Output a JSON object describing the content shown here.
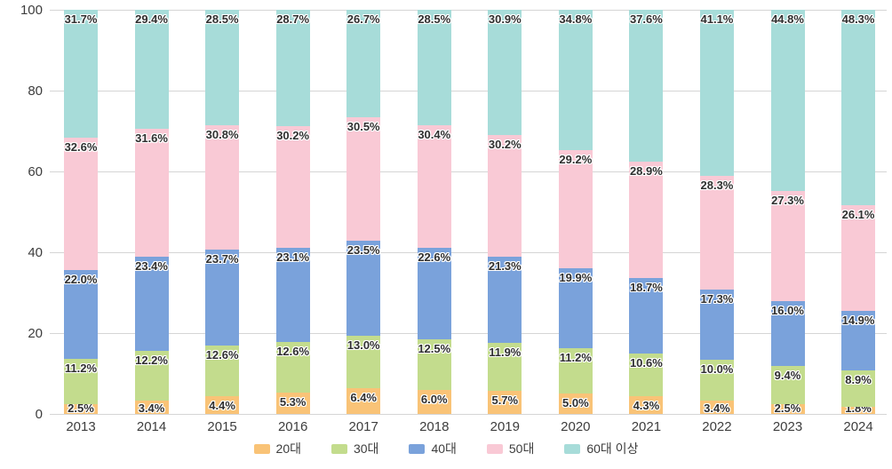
{
  "chart_data": {
    "type": "bar",
    "stacked": true,
    "title": "",
    "categories": [
      "2013",
      "2014",
      "2015",
      "2016",
      "2017",
      "2018",
      "2019",
      "2020",
      "2021",
      "2022",
      "2023",
      "2024"
    ],
    "series": [
      {
        "name": "20대",
        "color": "#f9c377",
        "values": [
          2.5,
          3.4,
          4.4,
          5.3,
          6.4,
          6.0,
          5.7,
          5.0,
          4.3,
          3.4,
          2.5,
          1.8
        ]
      },
      {
        "name": "30대",
        "color": "#c3dc8d",
        "values": [
          11.2,
          12.2,
          12.6,
          12.6,
          13.0,
          12.5,
          11.9,
          11.2,
          10.6,
          10.0,
          9.4,
          8.9
        ]
      },
      {
        "name": "40대",
        "color": "#7aa2db",
        "values": [
          22.0,
          23.4,
          23.7,
          23.1,
          23.5,
          22.6,
          21.3,
          19.9,
          18.7,
          17.3,
          16.0,
          14.9
        ]
      },
      {
        "name": "50대",
        "color": "#f9c9d5",
        "values": [
          32.6,
          31.6,
          30.8,
          30.2,
          30.5,
          30.4,
          30.2,
          29.2,
          28.9,
          28.3,
          27.3,
          26.1
        ]
      },
      {
        "name": "60대 이상",
        "color": "#a7dcd9",
        "values": [
          31.7,
          29.4,
          28.5,
          28.7,
          26.7,
          28.5,
          30.9,
          34.8,
          37.6,
          41.1,
          44.8,
          48.3
        ]
      }
    ],
    "value_suffix": "%",
    "xlabel": "",
    "ylabel": "",
    "ylim": [
      0,
      100
    ],
    "yticks": [
      0,
      20,
      40,
      60,
      80,
      100
    ],
    "grid": true,
    "legend_position": "bottom"
  }
}
